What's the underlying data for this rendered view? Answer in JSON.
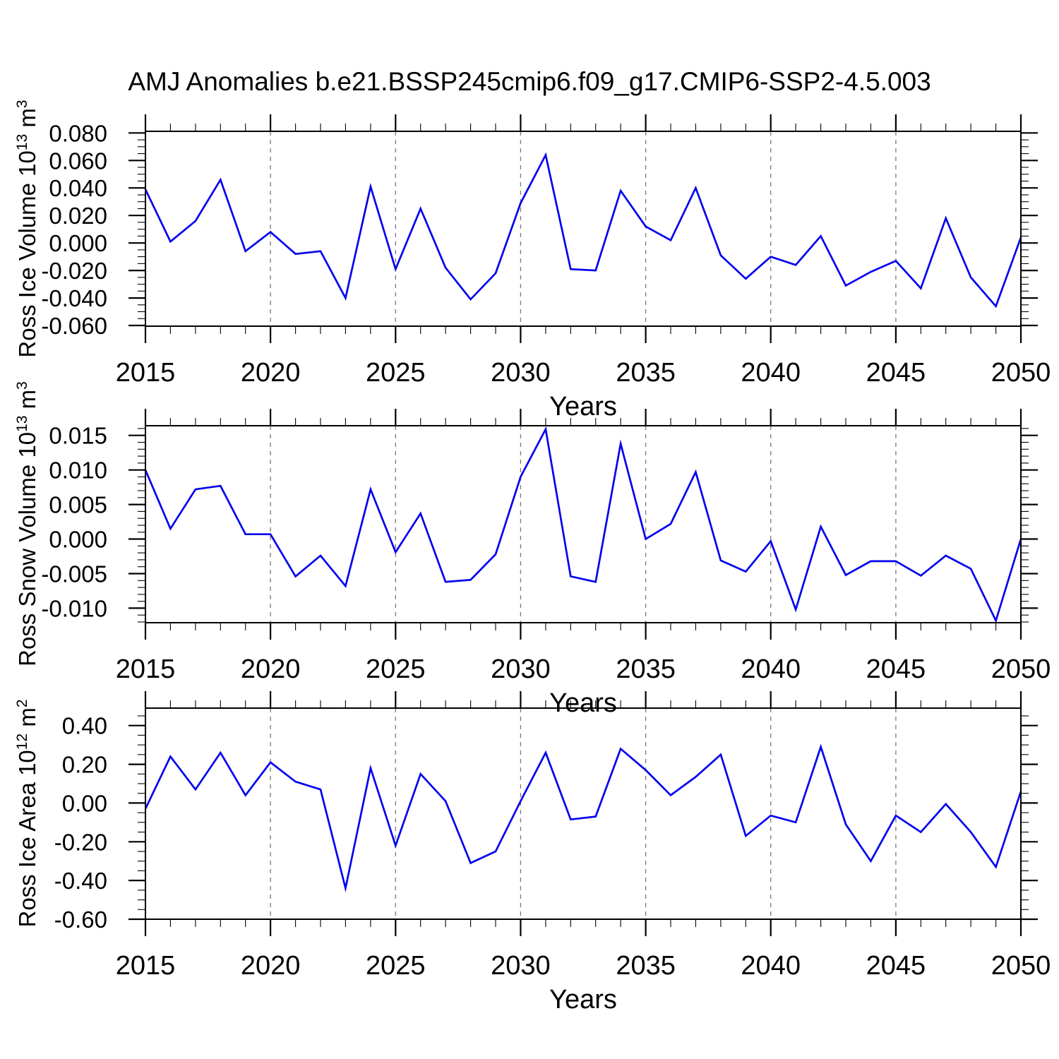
{
  "title": "AMJ Anomalies b.e21.BSSP245cmip6.f09_g17.CMIP6-SSP2-4.5.003",
  "xlabel": "Years",
  "line_color": "#0202f0",
  "grid_color": "#787878",
  "frame_color": "#000000",
  "chart_data": [
    {
      "type": "line",
      "name": "ross-ice-volume",
      "ylabel_prefix": "Ross Ice Volume 10",
      "ylabel_sup1": "13",
      "ylabel_mid": " m",
      "ylabel_sup2": "3",
      "xlim": [
        2015,
        2050
      ],
      "ylim": [
        -0.0605,
        0.0812
      ],
      "yminor_step": 0.005,
      "xminor_step": 1,
      "grid_x": [
        2020,
        2025,
        2030,
        2035,
        2040,
        2045
      ],
      "xtick_values": [
        2015,
        2020,
        2025,
        2030,
        2035,
        2040,
        2045,
        2050
      ],
      "xtick_labels": [
        "2015",
        "2020",
        "2025",
        "2030",
        "2035",
        "2040",
        "2045",
        "2050"
      ],
      "ytick_values": [
        0.08,
        0.06,
        0.04,
        0.02,
        0.0,
        -0.02,
        -0.04,
        -0.06
      ],
      "ytick_labels": [
        "0.080",
        "0.060",
        "0.040",
        "0.020",
        "0.000",
        "-0.020",
        "-0.040",
        "-0.060"
      ],
      "x": [
        2015,
        2016,
        2017,
        2018,
        2019,
        2020,
        2021,
        2022,
        2023,
        2024,
        2025,
        2026,
        2027,
        2028,
        2029,
        2030,
        2031,
        2032,
        2033,
        2034,
        2035,
        2036,
        2037,
        2038,
        2039,
        2040,
        2041,
        2042,
        2043,
        2044,
        2045,
        2046,
        2047,
        2048,
        2049,
        2050
      ],
      "values": [
        0.039,
        0.001,
        0.016,
        0.046,
        -0.006,
        0.008,
        -0.008,
        -0.006,
        -0.04,
        0.041,
        -0.019,
        0.025,
        -0.018,
        -0.041,
        -0.022,
        0.029,
        0.064,
        -0.019,
        -0.02,
        0.038,
        0.012,
        0.002,
        0.04,
        -0.009,
        -0.026,
        -0.01,
        -0.016,
        0.005,
        -0.031,
        -0.021,
        -0.013,
        -0.033,
        0.018,
        -0.025,
        -0.046,
        0.004
      ]
    },
    {
      "type": "line",
      "name": "ross-snow-volume",
      "ylabel_prefix": "Ross Snow Volume 10",
      "ylabel_sup1": "13",
      "ylabel_mid": " m",
      "ylabel_sup2": "3",
      "xlim": [
        2015,
        2050
      ],
      "ylim": [
        -0.0121,
        0.0164
      ],
      "yminor_step": 0.001,
      "xminor_step": 1,
      "grid_x": [
        2020,
        2025,
        2030,
        2035,
        2040,
        2045
      ],
      "xtick_values": [
        2015,
        2020,
        2025,
        2030,
        2035,
        2040,
        2045,
        2050
      ],
      "xtick_labels": [
        "2015",
        "2020",
        "2025",
        "2030",
        "2035",
        "2040",
        "2045",
        "2050"
      ],
      "ytick_values": [
        0.015,
        0.01,
        0.005,
        0.0,
        -0.005,
        -0.01
      ],
      "ytick_labels": [
        "0.015",
        "0.010",
        "0.005",
        "0.000",
        "-0.005",
        "-0.010"
      ],
      "x": [
        2015,
        2016,
        2017,
        2018,
        2019,
        2020,
        2021,
        2022,
        2023,
        2024,
        2025,
        2026,
        2027,
        2028,
        2029,
        2030,
        2031,
        2032,
        2033,
        2034,
        2035,
        2036,
        2037,
        2038,
        2039,
        2040,
        2041,
        2042,
        2043,
        2044,
        2045,
        2046,
        2047,
        2048,
        2049,
        2050
      ],
      "values": [
        0.01,
        0.0015,
        0.0072,
        0.0077,
        0.0007,
        0.0007,
        -0.0054,
        -0.0024,
        -0.0068,
        0.0072,
        -0.0019,
        0.0037,
        -0.0062,
        -0.0059,
        -0.0022,
        0.009,
        0.0159,
        -0.0054,
        -0.0062,
        0.0138,
        0.0,
        0.0022,
        0.0097,
        -0.0031,
        -0.0047,
        -0.0003,
        -0.0102,
        0.0018,
        -0.0052,
        -0.0032,
        -0.0032,
        -0.0053,
        -0.0024,
        -0.0043,
        -0.0118,
        0.0
      ]
    },
    {
      "type": "line",
      "name": "ross-ice-area",
      "ylabel_prefix": "Ross Ice Area 10",
      "ylabel_sup1": "12",
      "ylabel_mid": " m",
      "ylabel_sup2": "2",
      "xlim": [
        2015,
        2050
      ],
      "ylim": [
        -0.6,
        0.49
      ],
      "yminor_step": 0.05,
      "xminor_step": 1,
      "grid_x": [
        2020,
        2025,
        2030,
        2035,
        2040,
        2045
      ],
      "xtick_values": [
        2015,
        2020,
        2025,
        2030,
        2035,
        2040,
        2045,
        2050
      ],
      "xtick_labels": [
        "2015",
        "2020",
        "2025",
        "2030",
        "2035",
        "2040",
        "2045",
        "2050"
      ],
      "ytick_values": [
        0.4,
        0.2,
        0.0,
        -0.2,
        -0.4,
        -0.6
      ],
      "ytick_labels": [
        "0.40",
        "0.20",
        "0.00",
        "-0.20",
        "-0.40",
        "-0.60"
      ],
      "x": [
        2015,
        2016,
        2017,
        2018,
        2019,
        2020,
        2021,
        2022,
        2023,
        2024,
        2025,
        2026,
        2027,
        2028,
        2029,
        2030,
        2031,
        2032,
        2033,
        2034,
        2035,
        2036,
        2037,
        2038,
        2039,
        2040,
        2041,
        2042,
        2043,
        2044,
        2045,
        2046,
        2047,
        2048,
        2049,
        2050
      ],
      "values": [
        -0.03,
        0.24,
        0.07,
        0.26,
        0.04,
        0.21,
        0.11,
        0.07,
        -0.44,
        0.18,
        -0.22,
        0.15,
        0.01,
        -0.31,
        -0.25,
        0.01,
        0.26,
        -0.085,
        -0.07,
        0.28,
        0.17,
        0.04,
        0.135,
        0.25,
        -0.17,
        -0.065,
        -0.1,
        0.29,
        -0.11,
        -0.3,
        -0.065,
        -0.15,
        -0.005,
        -0.15,
        -0.33,
        0.06
      ]
    }
  ]
}
